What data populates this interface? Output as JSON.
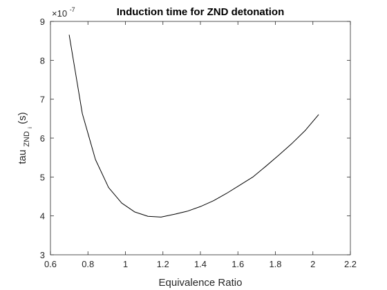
{
  "chart_data": {
    "type": "line",
    "title": "Induction time for ZND detonation",
    "xlabel": "Equivalence Ratio",
    "ylabel": {
      "main": "tau",
      "sub": "ZND",
      "subsub": "i",
      "suffix": " (s)"
    },
    "y_exponent_label": {
      "base": "×10",
      "exp": "-7"
    },
    "xlim": [
      0.6,
      2.2
    ],
    "ylim": [
      3,
      9
    ],
    "xticks": [
      0.6,
      0.8,
      1,
      1.2,
      1.4,
      1.6,
      1.8,
      2,
      2.2
    ],
    "xtick_labels": [
      "0.6",
      "0.8",
      "1",
      "1.2",
      "1.4",
      "1.6",
      "1.8",
      "2",
      "2.2"
    ],
    "yticks": [
      3,
      4,
      5,
      6,
      7,
      8,
      9
    ],
    "ytick_labels": [
      "3",
      "4",
      "5",
      "6",
      "7",
      "8",
      "9"
    ],
    "grid": false,
    "legend": "none",
    "colors": {
      "axis": "#262626",
      "line": "#000000",
      "text": "#262626"
    },
    "series": [
      {
        "x": [
          0.7,
          0.77,
          0.84,
          0.91,
          0.98,
          1.05,
          1.12,
          1.19,
          1.26,
          1.33,
          1.4,
          1.47,
          1.54,
          1.61,
          1.68,
          1.75,
          1.82,
          1.89,
          1.96,
          2.03
        ],
        "y": [
          8.65,
          6.63,
          5.45,
          4.73,
          4.33,
          4.1,
          3.99,
          3.97,
          4.04,
          4.12,
          4.24,
          4.39,
          4.58,
          4.79,
          5.0,
          5.28,
          5.57,
          5.87,
          6.2,
          6.6
        ]
      }
    ]
  }
}
